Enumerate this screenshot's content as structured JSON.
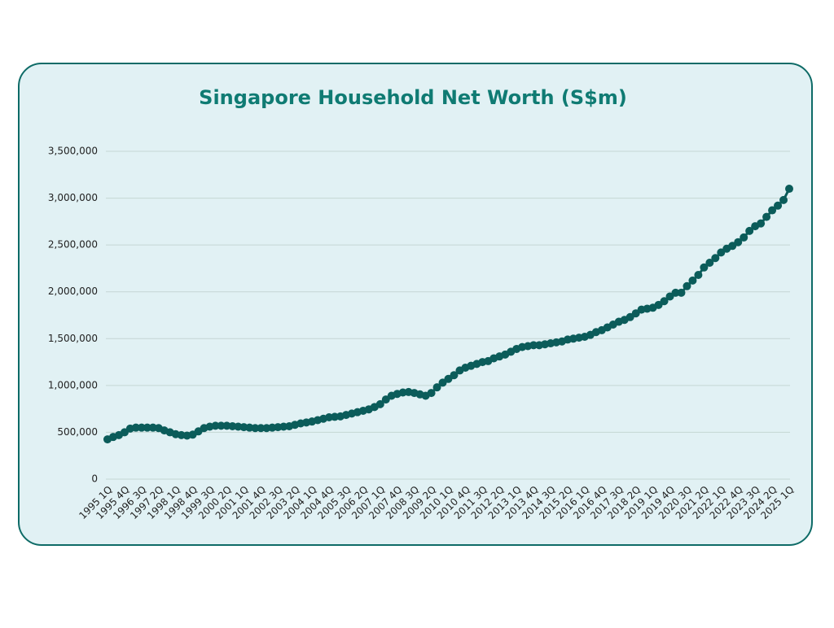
{
  "chart_data": {
    "type": "line",
    "title": "Singapore Household Net Worth (S$m)",
    "categories": [
      "1995 1Q",
      null,
      null,
      "1995 4Q",
      null,
      null,
      "1996 3Q",
      null,
      null,
      "1997 2Q",
      null,
      null,
      "1998 1Q",
      null,
      null,
      "1998 4Q",
      null,
      null,
      "1999 3Q",
      null,
      null,
      "2000 2Q",
      null,
      null,
      "2001 1Q",
      null,
      null,
      "2001 4Q",
      null,
      null,
      "2002 3Q",
      null,
      null,
      "2003 2Q",
      null,
      null,
      "2004 1Q",
      null,
      null,
      "2004 4Q",
      null,
      null,
      "2005 3Q",
      null,
      null,
      "2006 2Q",
      null,
      null,
      "2007 1Q",
      null,
      null,
      "2007 4Q",
      null,
      null,
      "2008 3Q",
      null,
      null,
      "2009 2Q",
      null,
      null,
      "2010 1Q",
      null,
      null,
      "2010 4Q",
      null,
      null,
      "2011 3Q",
      null,
      null,
      "2012 2Q",
      null,
      null,
      "2013 1Q",
      null,
      null,
      "2013 4Q",
      null,
      null,
      "2014 3Q",
      null,
      null,
      "2015 2Q",
      null,
      null,
      "2016 1Q",
      null,
      null,
      "2016 4Q",
      null,
      null,
      "2017 3Q",
      null,
      null,
      "2018 2Q",
      null,
      null,
      "2019 1Q",
      null,
      null,
      "2019 4Q",
      null,
      null,
      "2020 3Q",
      null,
      null,
      "2021 2Q",
      null,
      null,
      "2022 1Q",
      null,
      null,
      "2022 4Q",
      null,
      null,
      "2023 3Q",
      null,
      null,
      "2024 2Q",
      null,
      null,
      "2025 1Q"
    ],
    "values": [
      425000,
      450000,
      470000,
      500000,
      540000,
      550000,
      550000,
      550000,
      550000,
      545000,
      520000,
      500000,
      480000,
      470000,
      465000,
      475000,
      510000,
      545000,
      560000,
      570000,
      570000,
      570000,
      565000,
      560000,
      555000,
      550000,
      545000,
      545000,
      545000,
      550000,
      555000,
      560000,
      565000,
      580000,
      595000,
      605000,
      615000,
      630000,
      645000,
      660000,
      665000,
      670000,
      685000,
      700000,
      715000,
      730000,
      745000,
      770000,
      800000,
      850000,
      890000,
      910000,
      925000,
      930000,
      920000,
      905000,
      890000,
      920000,
      980000,
      1030000,
      1070000,
      1110000,
      1160000,
      1190000,
      1210000,
      1230000,
      1250000,
      1260000,
      1290000,
      1310000,
      1330000,
      1360000,
      1390000,
      1410000,
      1420000,
      1430000,
      1430000,
      1440000,
      1450000,
      1460000,
      1470000,
      1490000,
      1500000,
      1510000,
      1520000,
      1540000,
      1570000,
      1590000,
      1620000,
      1650000,
      1680000,
      1700000,
      1730000,
      1770000,
      1810000,
      1820000,
      1830000,
      1860000,
      1900000,
      1950000,
      1990000,
      1990000,
      2060000,
      2120000,
      2180000,
      2260000,
      2310000,
      2360000,
      2420000,
      2460000,
      2490000,
      2530000,
      2580000,
      2650000,
      2700000,
      2730000,
      2800000,
      2870000,
      2920000,
      2980000,
      3100000
    ],
    "color": "#0b5c5a",
    "ylim": [
      0,
      3500000
    ],
    "yticks": [
      0,
      {
        "value": 500000,
        "label": "500,000"
      },
      {
        "value": 1000000,
        "label": "1,000,000"
      },
      {
        "value": 1500000,
        "label": "1,500,000"
      },
      {
        "value": 2000000,
        "label": "2,000,000"
      },
      {
        "value": 2500000,
        "label": "2,500,000"
      },
      {
        "value": 3000000,
        "label": "3,000,000"
      },
      {
        "value": 3500000,
        "label": "3,500,000"
      }
    ],
    "grid": true
  }
}
